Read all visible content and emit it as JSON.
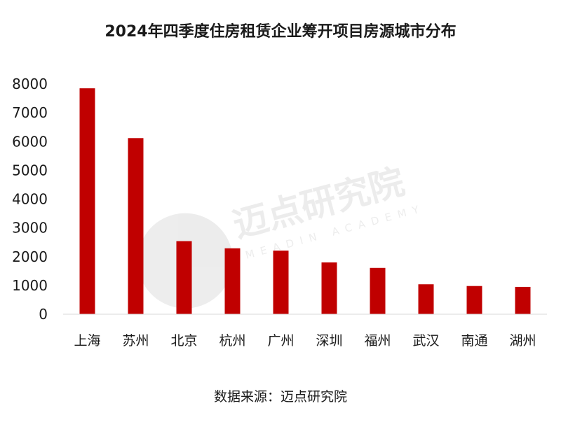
{
  "chart_data": {
    "type": "bar",
    "title": "2024年四季度住房租赁企业筹开项目房源城市分布",
    "categories": [
      "上海",
      "苏州",
      "北京",
      "杭州",
      "广州",
      "深圳",
      "福州",
      "武汉",
      "南通",
      "湖州"
    ],
    "values": [
      7850,
      6120,
      2540,
      2290,
      2210,
      1800,
      1610,
      1040,
      980,
      950
    ],
    "ylim": [
      0,
      8000
    ],
    "yticks": [
      "0",
      "1000",
      "2000",
      "3000",
      "4000",
      "5000",
      "6000",
      "7000",
      "8000"
    ],
    "xlabel": "",
    "ylabel": "",
    "grid": false,
    "bar_color": "#c00000"
  },
  "source": "数据来源：迈点研究院",
  "watermark": {
    "text": "迈点研究院",
    "subtext": "MEADIN ACADEMY"
  }
}
